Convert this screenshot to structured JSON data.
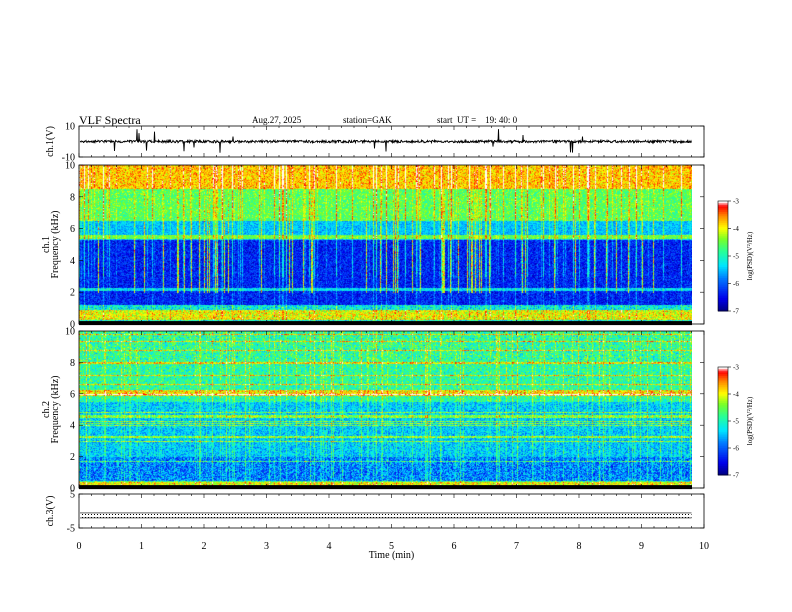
{
  "header": {
    "title": "VLF  Spectra",
    "date": "Aug.27, 2025",
    "station": "station=GAK",
    "start_ut": "start  UT =    19: 40: 0"
  },
  "chart_data": {
    "type": "heatmap",
    "title": "VLF  Spectra",
    "x_axis": {
      "label": "Time  (min)",
      "range": [
        0,
        10
      ],
      "ticks": [
        "0",
        "1",
        "2",
        "3",
        "4",
        "5",
        "6",
        "7",
        "8",
        "9",
        "10"
      ]
    },
    "panels": [
      {
        "name": "ch1-waveform",
        "type": "line",
        "ylabel": "ch.1(V)",
        "ylim": [
          -10,
          10
        ],
        "tick_labels": [
          "10",
          "-10"
        ],
        "baseline": 0
      },
      {
        "name": "ch1-spectrogram",
        "type": "heatmap",
        "ylabel_line1": "ch.1",
        "ylabel_line2": "Frequency  (kHz)",
        "ylim": [
          0,
          10
        ],
        "tick_labels": [
          "0",
          "2",
          "4",
          "6",
          "8",
          "10"
        ],
        "data_end_min": 9.8
      },
      {
        "name": "ch2-spectrogram",
        "type": "heatmap",
        "ylabel_line1": "ch.2",
        "ylabel_line2": "Frequency  (kHz)",
        "ylim": [
          0,
          10
        ],
        "tick_labels": [
          "0",
          "2",
          "4",
          "6",
          "8",
          "10"
        ],
        "data_end_min": 9.8
      },
      {
        "name": "ch3-waveform",
        "type": "line",
        "ylabel": "ch.3(V)",
        "ylim": [
          -5,
          5
        ],
        "tick_labels": [
          "5",
          "-5"
        ],
        "baseline": -1.3
      }
    ],
    "colorbar": {
      "label": "log(PSD)(V²/Hz)",
      "range": [
        -7,
        -3
      ],
      "tick_labels": [
        "-3",
        "-4",
        "-5",
        "-6",
        "-7"
      ],
      "colors": [
        "#00008b",
        "#0000ff",
        "#0080ff",
        "#00ffff",
        "#00ff80",
        "#40ff00",
        "#ffff00",
        "#ff8000",
        "#ff0000",
        "#ffffff"
      ]
    }
  }
}
